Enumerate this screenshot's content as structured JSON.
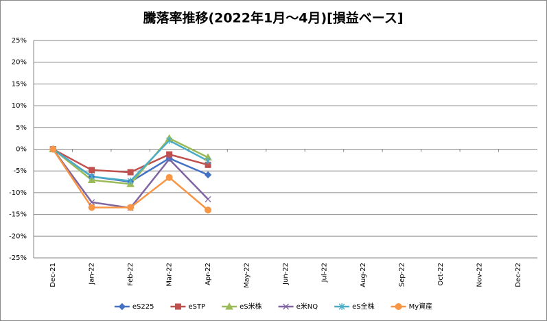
{
  "chart_data": {
    "type": "line",
    "title": "騰落率推移(2022年1月～4月)[損益ベース]",
    "categories": [
      "Dec-21",
      "Jan-22",
      "Feb-22",
      "Mar-22",
      "Apr-22",
      "May-22",
      "Jun-22",
      "Jul-22",
      "Aug-22",
      "Sep-22",
      "Oct-22",
      "Nov-22",
      "Dec-22"
    ],
    "series": [
      {
        "name": "eS225",
        "color": "#4472c4",
        "marker": "diamond",
        "values": [
          0,
          -6.3,
          -7.5,
          -2.1,
          -5.9,
          null,
          null,
          null,
          null,
          null,
          null,
          null,
          null
        ]
      },
      {
        "name": "eSTP",
        "color": "#c0504d",
        "marker": "square",
        "values": [
          0,
          -4.8,
          -5.3,
          -1.2,
          -3.6,
          null,
          null,
          null,
          null,
          null,
          null,
          null,
          null
        ]
      },
      {
        "name": "eS米株",
        "color": "#9bbb59",
        "marker": "triangle",
        "values": [
          0,
          -7.1,
          -8.0,
          2.5,
          -1.9,
          null,
          null,
          null,
          null,
          null,
          null,
          null,
          null
        ]
      },
      {
        "name": "e米NQ",
        "color": "#8064a2",
        "marker": "x",
        "values": [
          0,
          -12.2,
          -13.5,
          -2.3,
          -11.5,
          null,
          null,
          null,
          null,
          null,
          null,
          null,
          null
        ]
      },
      {
        "name": "eS全株",
        "color": "#4bacc6",
        "marker": "star",
        "values": [
          0,
          -6.3,
          -7.3,
          2.0,
          -2.7,
          null,
          null,
          null,
          null,
          null,
          null,
          null,
          null
        ]
      },
      {
        "name": "My資産",
        "color": "#f79646",
        "marker": "circle",
        "values": [
          0,
          -13.4,
          -13.4,
          -6.5,
          -14.0,
          null,
          null,
          null,
          null,
          null,
          null,
          null,
          null
        ]
      }
    ],
    "ylim": [
      -25,
      25
    ],
    "yticks": [
      {
        "value": -25,
        "label": "-25%"
      },
      {
        "value": -20,
        "label": "-20%"
      },
      {
        "value": -15,
        "label": "-15%"
      },
      {
        "value": -10,
        "label": "-10%"
      },
      {
        "value": -5,
        "label": "-5%"
      },
      {
        "value": 0,
        "label": "0%"
      },
      {
        "value": 5,
        "label": "5%"
      },
      {
        "value": 10,
        "label": "10%"
      },
      {
        "value": 15,
        "label": "15%"
      },
      {
        "value": 20,
        "label": "20%"
      },
      {
        "value": 25,
        "label": "25%"
      }
    ],
    "grid": true,
    "legend": "bottom"
  }
}
